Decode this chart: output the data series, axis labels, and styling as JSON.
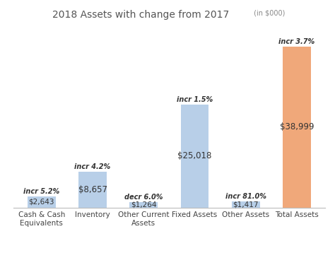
{
  "title": "2018 Assets with change from 2017",
  "title_suffix": " (in $000)",
  "categories": [
    "Cash & Cash\nEquivalents",
    "Inventory",
    "Other Current\nAssets",
    "Fixed Assets",
    "Other Assets",
    "Total Assets"
  ],
  "values": [
    2643,
    8657,
    1264,
    25018,
    1417,
    38999
  ],
  "bar_colors": [
    "#b8cfe8",
    "#b8cfe8",
    "#b8cfe8",
    "#b8cfe8",
    "#b8cfe8",
    "#f0a87a"
  ],
  "value_labels": [
    "$2,643",
    "$8,657",
    "$1,264",
    "$25,018",
    "$1,417",
    "$38,999"
  ],
  "pct_labels": [
    "incr 5.2%",
    "incr 4.2%",
    "decr 6.0%",
    "incr 1.5%",
    "incr 81.0%",
    "incr 3.7%"
  ],
  "background_color": "#ffffff",
  "ylim": [
    0,
    43000
  ],
  "figsize": [
    4.74,
    3.58
  ],
  "dpi": 100
}
